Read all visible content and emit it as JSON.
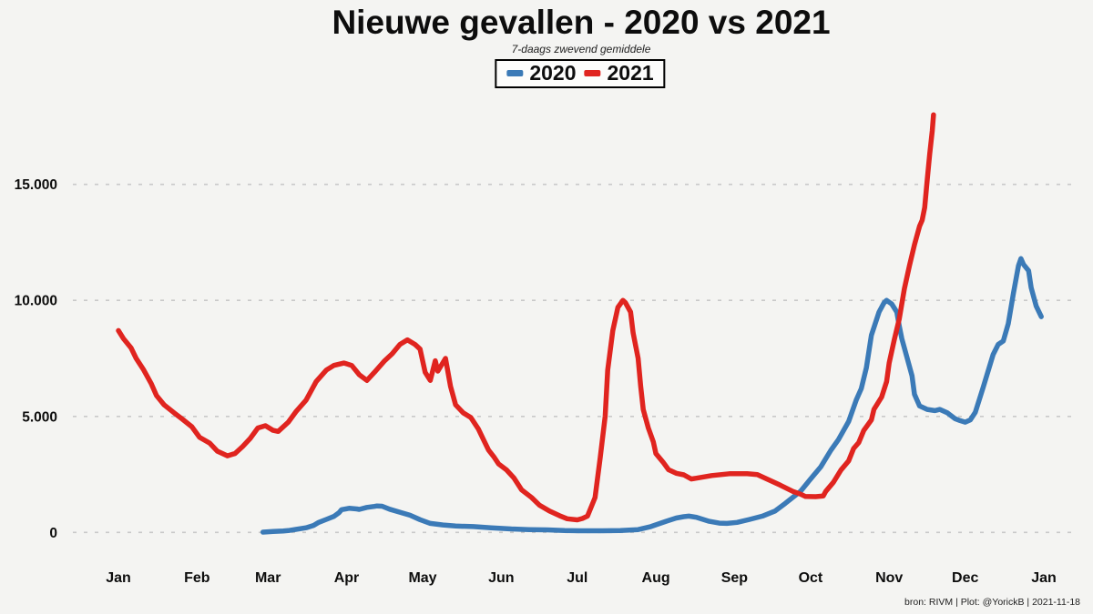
{
  "page": {
    "title": "Nieuwe gevallen - 2020 vs 2021",
    "subtitle": "7-daags zwevend gemiddele",
    "footer": "bron: RIVM  | Plot: @YorickB |  2021-11-18",
    "background_color": "#f4f4f2"
  },
  "legend": {
    "items": [
      {
        "label": "2020",
        "color": "#3b7ab7"
      },
      {
        "label": "2021",
        "color": "#e0241f"
      }
    ]
  },
  "chart_data": {
    "type": "line",
    "title": "Nieuwe gevallen - 2020 vs 2021",
    "subtitle": "7-daags zwevend gemiddele",
    "xlabel": "",
    "ylabel": "",
    "x_unit": "day-of-year",
    "xlim": [
      1,
      366
    ],
    "ylim": [
      0,
      19000
    ],
    "grid": "horizontal-dashed-only",
    "grid_color": "#c9c9c9",
    "legend_position": "top-center",
    "tick_text_color": "#0d0d0d",
    "y_ticks": [
      {
        "value": 0,
        "label": "0"
      },
      {
        "value": 5000,
        "label": "5.000"
      },
      {
        "value": 10000,
        "label": "10.000"
      },
      {
        "value": 15000,
        "label": "15.000"
      }
    ],
    "x_ticks": [
      {
        "day": 1,
        "label": "Jan"
      },
      {
        "day": 32,
        "label": "Feb"
      },
      {
        "day": 60,
        "label": "Mar"
      },
      {
        "day": 91,
        "label": "Apr"
      },
      {
        "day": 121,
        "label": "May"
      },
      {
        "day": 152,
        "label": "Jun"
      },
      {
        "day": 182,
        "label": "Jul"
      },
      {
        "day": 213,
        "label": "Aug"
      },
      {
        "day": 244,
        "label": "Sep"
      },
      {
        "day": 274,
        "label": "Oct"
      },
      {
        "day": 305,
        "label": "Nov"
      },
      {
        "day": 335,
        "label": "Dec"
      },
      {
        "day": 366,
        "label": "Jan"
      }
    ],
    "series": [
      {
        "name": "2020",
        "color": "#3b7ab7",
        "points": [
          [
            58,
            10
          ],
          [
            62,
            40
          ],
          [
            66,
            60
          ],
          [
            68,
            80
          ],
          [
            71,
            130
          ],
          [
            75,
            200
          ],
          [
            78,
            300
          ],
          [
            80,
            430
          ],
          [
            83,
            560
          ],
          [
            86,
            690
          ],
          [
            88,
            850
          ],
          [
            89,
            980
          ],
          [
            92,
            1040
          ],
          [
            95,
            1010
          ],
          [
            96,
            990
          ],
          [
            99,
            1080
          ],
          [
            102,
            1120
          ],
          [
            103,
            1140
          ],
          [
            105,
            1130
          ],
          [
            108,
            1000
          ],
          [
            112,
            870
          ],
          [
            116,
            740
          ],
          [
            120,
            550
          ],
          [
            124,
            390
          ],
          [
            129,
            320
          ],
          [
            134,
            275
          ],
          [
            141,
            250
          ],
          [
            148,
            200
          ],
          [
            156,
            150
          ],
          [
            163,
            120
          ],
          [
            170,
            110
          ],
          [
            177,
            80
          ],
          [
            184,
            70
          ],
          [
            192,
            70
          ],
          [
            199,
            80
          ],
          [
            206,
            120
          ],
          [
            211,
            250
          ],
          [
            217,
            480
          ],
          [
            221,
            620
          ],
          [
            224,
            680
          ],
          [
            226,
            700
          ],
          [
            229,
            650
          ],
          [
            234,
            480
          ],
          [
            238,
            400
          ],
          [
            241,
            390
          ],
          [
            245,
            430
          ],
          [
            250,
            560
          ],
          [
            255,
            700
          ],
          [
            260,
            920
          ],
          [
            264,
            1250
          ],
          [
            270,
            1770
          ],
          [
            274,
            2300
          ],
          [
            278,
            2820
          ],
          [
            282,
            3540
          ],
          [
            285,
            4000
          ],
          [
            289,
            4780
          ],
          [
            292,
            5700
          ],
          [
            294,
            6200
          ],
          [
            296,
            7100
          ],
          [
            298,
            8500
          ],
          [
            301,
            9500
          ],
          [
            303,
            9900
          ],
          [
            304,
            10000
          ],
          [
            306,
            9850
          ],
          [
            308,
            9500
          ],
          [
            309,
            8900
          ],
          [
            310,
            8350
          ],
          [
            312,
            7550
          ],
          [
            314,
            6750
          ],
          [
            315,
            5950
          ],
          [
            317,
            5450
          ],
          [
            320,
            5300
          ],
          [
            323,
            5250
          ],
          [
            325,
            5300
          ],
          [
            328,
            5150
          ],
          [
            331,
            4900
          ],
          [
            333,
            4820
          ],
          [
            335,
            4750
          ],
          [
            337,
            4850
          ],
          [
            339,
            5180
          ],
          [
            342,
            6220
          ],
          [
            346,
            7660
          ],
          [
            348,
            8100
          ],
          [
            350,
            8250
          ],
          [
            352,
            9000
          ],
          [
            354,
            10300
          ],
          [
            356,
            11500
          ],
          [
            357,
            11800
          ],
          [
            358,
            11550
          ],
          [
            360,
            11280
          ],
          [
            361,
            10550
          ],
          [
            363,
            9760
          ],
          [
            365,
            9300
          ]
        ]
      },
      {
        "name": "2021",
        "color": "#e0241f",
        "points": [
          [
            1,
            8700
          ],
          [
            3,
            8350
          ],
          [
            6,
            7950
          ],
          [
            8,
            7500
          ],
          [
            11,
            7000
          ],
          [
            14,
            6400
          ],
          [
            16,
            5900
          ],
          [
            19,
            5500
          ],
          [
            23,
            5150
          ],
          [
            26,
            4900
          ],
          [
            30,
            4550
          ],
          [
            33,
            4100
          ],
          [
            37,
            3850
          ],
          [
            40,
            3500
          ],
          [
            44,
            3300
          ],
          [
            47,
            3400
          ],
          [
            50,
            3700
          ],
          [
            53,
            4050
          ],
          [
            56,
            4500
          ],
          [
            59,
            4600
          ],
          [
            62,
            4400
          ],
          [
            64,
            4350
          ],
          [
            68,
            4750
          ],
          [
            71,
            5200
          ],
          [
            75,
            5700
          ],
          [
            79,
            6500
          ],
          [
            83,
            7000
          ],
          [
            86,
            7200
          ],
          [
            90,
            7300
          ],
          [
            93,
            7200
          ],
          [
            96,
            6800
          ],
          [
            99,
            6550
          ],
          [
            102,
            6900
          ],
          [
            106,
            7400
          ],
          [
            109,
            7700
          ],
          [
            112,
            8100
          ],
          [
            115,
            8300
          ],
          [
            118,
            8100
          ],
          [
            120,
            7900
          ],
          [
            122,
            6900
          ],
          [
            124,
            6550
          ],
          [
            126,
            7400
          ],
          [
            127,
            6950
          ],
          [
            130,
            7500
          ],
          [
            132,
            6300
          ],
          [
            134,
            5500
          ],
          [
            137,
            5150
          ],
          [
            140,
            4950
          ],
          [
            143,
            4450
          ],
          [
            145,
            4000
          ],
          [
            147,
            3550
          ],
          [
            149,
            3270
          ],
          [
            151,
            2950
          ],
          [
            154,
            2700
          ],
          [
            157,
            2350
          ],
          [
            160,
            1840
          ],
          [
            164,
            1500
          ],
          [
            167,
            1180
          ],
          [
            171,
            920
          ],
          [
            175,
            720
          ],
          [
            178,
            590
          ],
          [
            182,
            540
          ],
          [
            184,
            600
          ],
          [
            186,
            700
          ],
          [
            189,
            1500
          ],
          [
            191,
            3200
          ],
          [
            193,
            5000
          ],
          [
            194,
            7000
          ],
          [
            196,
            8700
          ],
          [
            198,
            9700
          ],
          [
            200,
            10000
          ],
          [
            201,
            9900
          ],
          [
            203,
            9500
          ],
          [
            204,
            8600
          ],
          [
            206,
            7500
          ],
          [
            207,
            6300
          ],
          [
            208,
            5300
          ],
          [
            210,
            4500
          ],
          [
            212,
            3900
          ],
          [
            213,
            3400
          ],
          [
            216,
            3000
          ],
          [
            218,
            2700
          ],
          [
            221,
            2550
          ],
          [
            224,
            2480
          ],
          [
            227,
            2300
          ],
          [
            235,
            2450
          ],
          [
            242,
            2530
          ],
          [
            249,
            2530
          ],
          [
            253,
            2490
          ],
          [
            257,
            2290
          ],
          [
            262,
            2040
          ],
          [
            267,
            1770
          ],
          [
            270,
            1650
          ],
          [
            272,
            1550
          ],
          [
            276,
            1540
          ],
          [
            279,
            1570
          ],
          [
            280,
            1770
          ],
          [
            283,
            2160
          ],
          [
            286,
            2690
          ],
          [
            289,
            3080
          ],
          [
            291,
            3620
          ],
          [
            293,
            3870
          ],
          [
            295,
            4400
          ],
          [
            298,
            4850
          ],
          [
            299,
            5300
          ],
          [
            302,
            5830
          ],
          [
            304,
            6500
          ],
          [
            305,
            7300
          ],
          [
            307,
            8300
          ],
          [
            309,
            9200
          ],
          [
            311,
            10500
          ],
          [
            313,
            11500
          ],
          [
            315,
            12400
          ],
          [
            317,
            13200
          ],
          [
            318,
            13450
          ],
          [
            319,
            14000
          ],
          [
            320,
            15200
          ],
          [
            321,
            16300
          ],
          [
            322,
            17300
          ],
          [
            322.5,
            18000
          ]
        ]
      }
    ]
  }
}
